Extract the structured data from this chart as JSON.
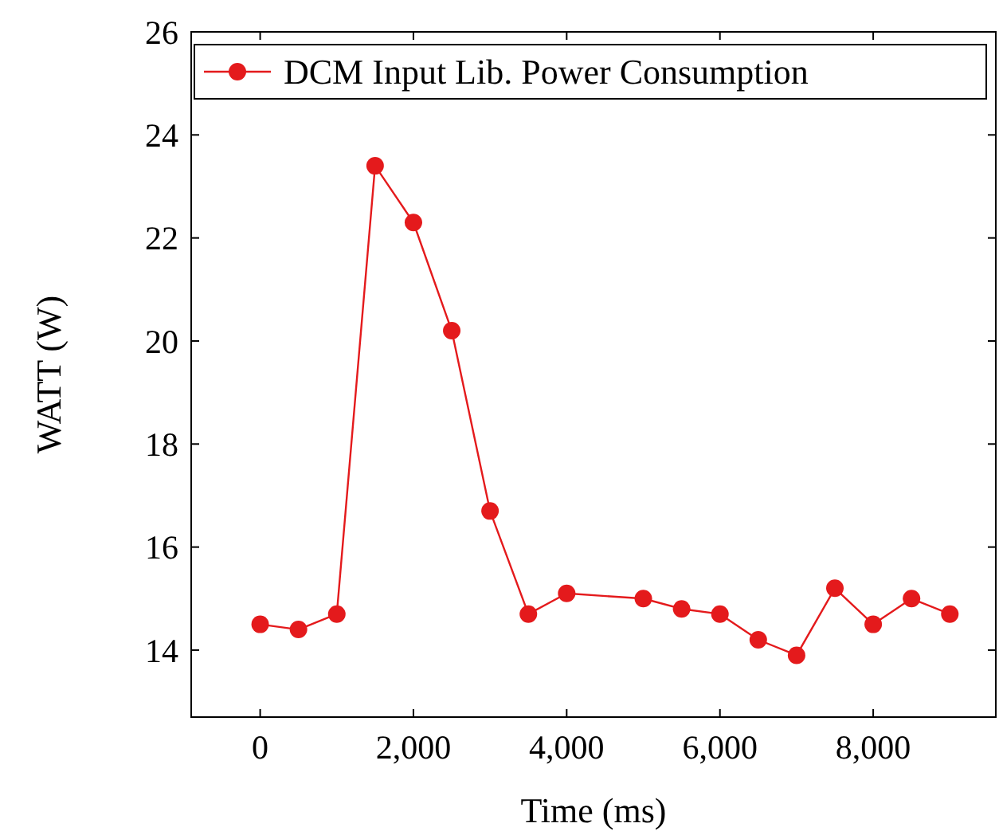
{
  "chart_data": {
    "type": "line",
    "xlabel": "Time (ms)",
    "ylabel": "WATT (W)",
    "x": [
      0,
      500,
      1000,
      1500,
      2000,
      2500,
      3000,
      3500,
      4000,
      5000,
      5500,
      6000,
      6500,
      7000,
      7500,
      8000,
      8500,
      9000
    ],
    "series": [
      {
        "name": "DCM Input Lib. Power Consumption",
        "color": "#e41a1c",
        "values": [
          14.5,
          14.4,
          14.7,
          23.4,
          22.3,
          20.2,
          16.7,
          14.7,
          15.1,
          15.0,
          14.8,
          14.7,
          14.2,
          13.9,
          15.2,
          14.5,
          15.0,
          14.7
        ]
      }
    ],
    "xlim": [
      -900,
      9600
    ],
    "xticks": [
      0,
      {
        "value": 2000,
        "label": "2,000"
      },
      {
        "value": 4000,
        "label": "4,000"
      },
      {
        "value": 6000,
        "label": "6,000"
      },
      {
        "value": 8000,
        "label": "8,000"
      }
    ],
    "ylim": [
      12.7,
      26
    ],
    "yticks": [
      14,
      16,
      18,
      20,
      22,
      24,
      26
    ],
    "marker": "circle",
    "legend": "top",
    "grid": false
  }
}
